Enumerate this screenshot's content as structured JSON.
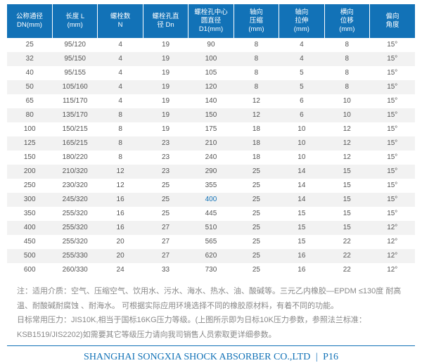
{
  "table": {
    "columns": [
      {
        "l1": "公称通径",
        "l2": "DN(mm)"
      },
      {
        "l1": "长度 L",
        "l2": "(mm)"
      },
      {
        "l1": "螺栓数",
        "l2": "N"
      },
      {
        "l1": "螺栓孔直",
        "l2": "径 Dn"
      },
      {
        "l1": "螺栓孔中心",
        "l2": "圆直径",
        "l3": "D1(mm)"
      },
      {
        "l1": "轴向",
        "l2": "压缩",
        "l3": "(mm)"
      },
      {
        "l1": "轴向",
        "l2": "拉伸",
        "l3": "(mm)"
      },
      {
        "l1": "横向",
        "l2": "位移",
        "l3": "(mm)"
      },
      {
        "l1": "偏向",
        "l2": "角度"
      }
    ],
    "rows": [
      [
        "25",
        "95/120",
        "4",
        "19",
        "90",
        "8",
        "4",
        "8",
        "15°"
      ],
      [
        "32",
        "95/150",
        "4",
        "19",
        "100",
        "8",
        "4",
        "8",
        "15°"
      ],
      [
        "40",
        "95/155",
        "4",
        "19",
        "105",
        "8",
        "5",
        "8",
        "15°"
      ],
      [
        "50",
        "105/160",
        "4",
        "19",
        "120",
        "8",
        "5",
        "8",
        "15°"
      ],
      [
        "65",
        "115/170",
        "4",
        "19",
        "140",
        "12",
        "6",
        "10",
        "15°"
      ],
      [
        "80",
        "135/170",
        "8",
        "19",
        "150",
        "12",
        "6",
        "10",
        "15°"
      ],
      [
        "100",
        "150/215",
        "8",
        "19",
        "175",
        "18",
        "10",
        "12",
        "15°"
      ],
      [
        "125",
        "165/215",
        "8",
        "23",
        "210",
        "18",
        "10",
        "12",
        "15°"
      ],
      [
        "150",
        "180/220",
        "8",
        "23",
        "240",
        "18",
        "10",
        "12",
        "15°"
      ],
      [
        "200",
        "210/320",
        "12",
        "23",
        "290",
        "25",
        "14",
        "15",
        "15°"
      ],
      [
        "250",
        "230/320",
        "12",
        "25",
        "355",
        "25",
        "14",
        "15",
        "15°"
      ],
      [
        "300",
        "245/320",
        "16",
        "25",
        "400",
        "25",
        "14",
        "15",
        "15°"
      ],
      [
        "350",
        "255/320",
        "16",
        "25",
        "445",
        "25",
        "15",
        "15",
        "15°"
      ],
      [
        "400",
        "255/320",
        "16",
        "27",
        "510",
        "25",
        "15",
        "15",
        "12°"
      ],
      [
        "450",
        "255/320",
        "20",
        "27",
        "565",
        "25",
        "15",
        "22",
        "12°"
      ],
      [
        "500",
        "255/330",
        "20",
        "27",
        "620",
        "25",
        "16",
        "22",
        "12°"
      ],
      [
        "600",
        "260/330",
        "24",
        "33",
        "730",
        "25",
        "16",
        "22",
        "12°"
      ]
    ],
    "highlight": {
      "row": 11,
      "col": 4
    }
  },
  "notes": {
    "p1": "注：适用介质：空气、压缩空气、饮用水、污水、海水、热水、油、酸碱等。三元乙内橡胶—EPDM ≤130度 耐高温、耐酸碱耐腐蚀 、耐海水。  可根据实际应用环境选择不同的橡胶原材料，有着不同的功能。",
    "p2": "日标常用压力：JIS10K,相当于国标16KG压力等级。(上图所示即为日标10K压力参数，参照法兰标准：KSB1519/JIS2202)如需要其它等级压力请向我司销售人员索取更详细参数。"
  },
  "footer": {
    "company": "SHANGHAI SONGXIA SHOCK ABSORBER CO.,LTD",
    "page": "P16"
  }
}
